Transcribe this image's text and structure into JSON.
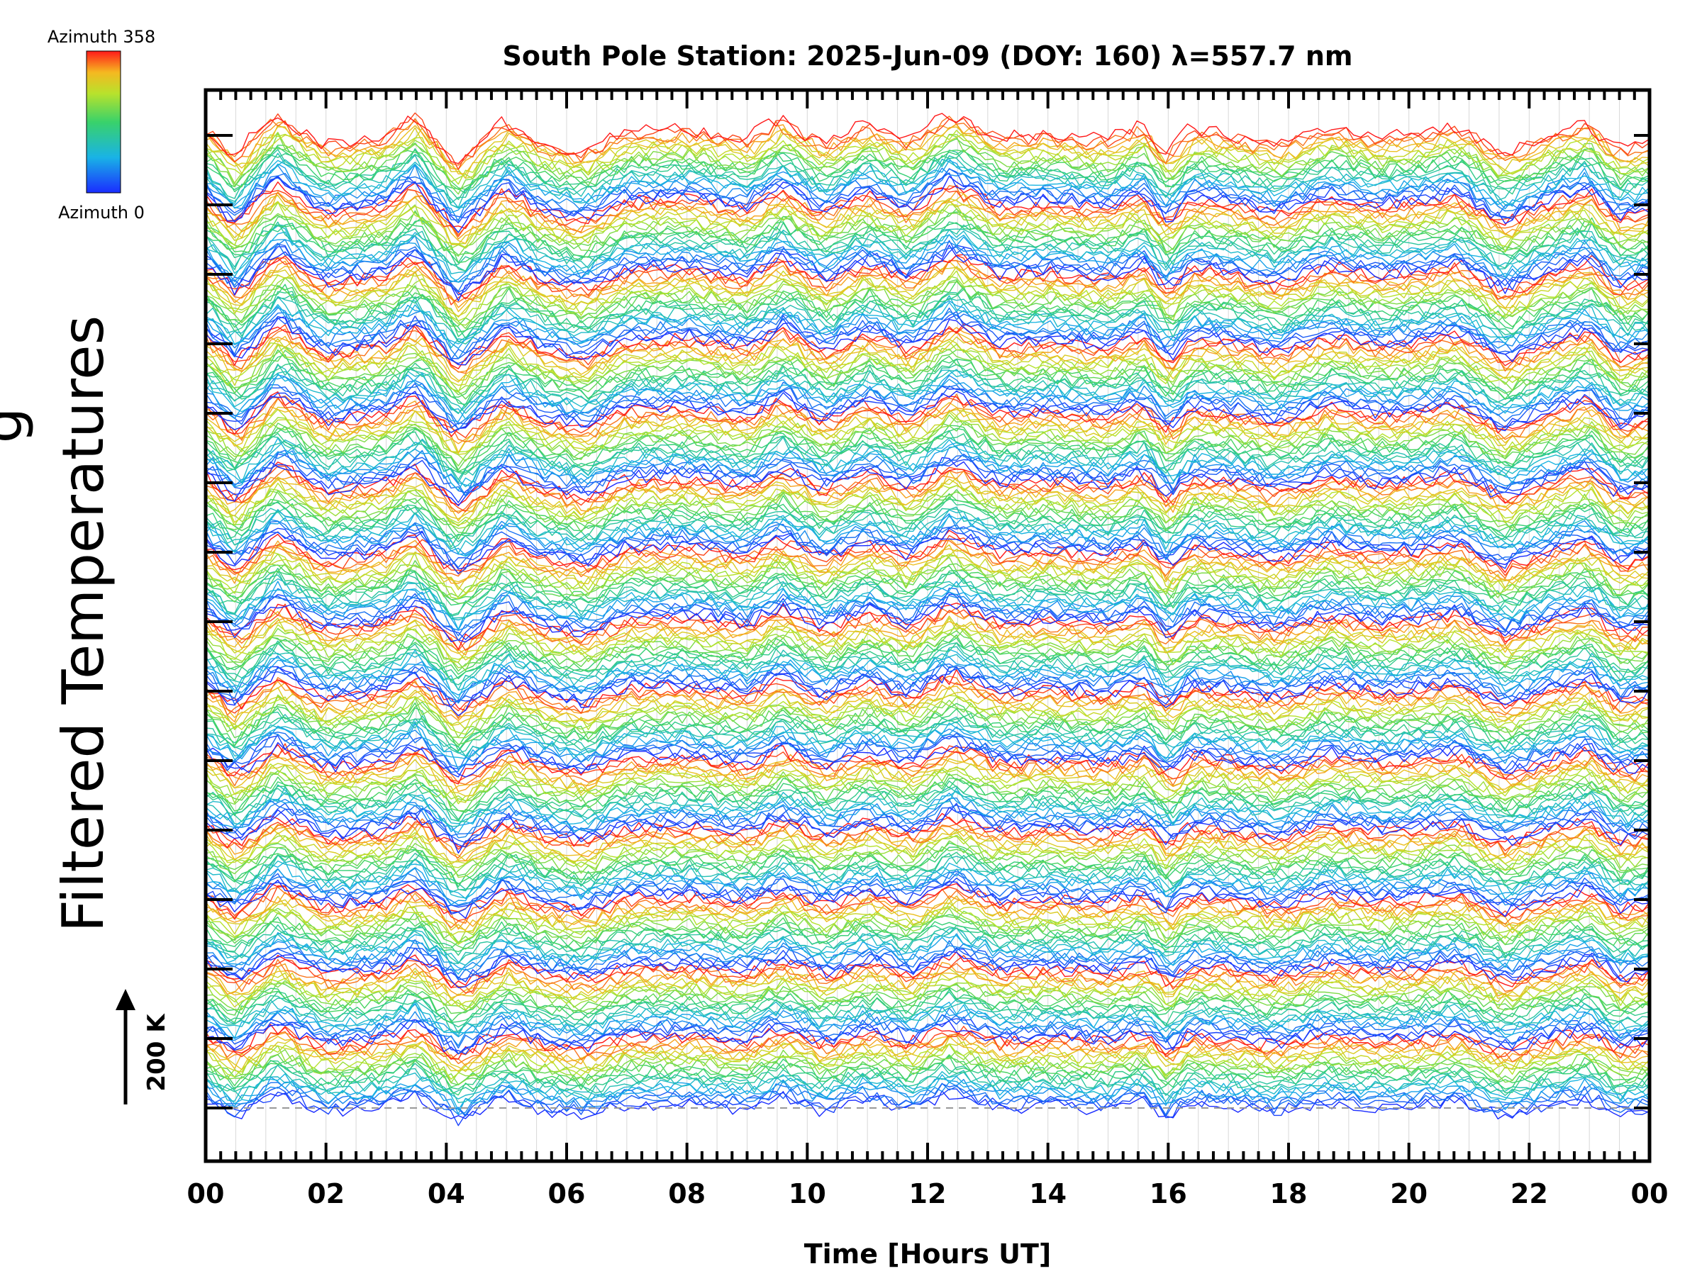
{
  "chart_data": {
    "type": "line",
    "title": "South Pole Station: 2025-Jun-09 (DOY: 160) λ=557.7 nm",
    "xlabel": "Time [Hours UT]",
    "ylabel": "Filtered Temperatures",
    "ylabel_partial": "g",
    "x_ticks": [
      "00",
      "02",
      "04",
      "06",
      "08",
      "10",
      "12",
      "14",
      "16",
      "18",
      "20",
      "22",
      "00"
    ],
    "xlim": [
      0,
      24
    ],
    "colorbar": {
      "top_label": "Azimuth 358",
      "bottom_label": "Azimuth 0",
      "min": 0,
      "max": 358
    },
    "scale_bar": {
      "label": "200 K",
      "value": 200,
      "unit": "K"
    },
    "stack": {
      "rings": 14,
      "azimuths_per_ring": 24,
      "baseline_dashed": true
    },
    "profile": {
      "description": "Approximate shared temperature variation pattern (K, relative) over hours UT",
      "hours": [
        0,
        0.5,
        1.2,
        2.0,
        3.0,
        3.5,
        4.2,
        5.0,
        5.6,
        6.3,
        7.0,
        8.0,
        9.0,
        9.6,
        10.3,
        11.0,
        11.7,
        12.4,
        13.2,
        14.0,
        15.0,
        15.6,
        16.0,
        16.4,
        17.0,
        17.8,
        18.7,
        19.5,
        20.2,
        20.8,
        21.6,
        22.3,
        23.0,
        23.5,
        24.0
      ],
      "values": [
        30,
        -45,
        60,
        -20,
        5,
        55,
        -60,
        40,
        -10,
        -35,
        15,
        20,
        -5,
        45,
        -15,
        35,
        -10,
        60,
        0,
        10,
        -5,
        30,
        -40,
        20,
        10,
        -20,
        25,
        0,
        10,
        30,
        -40,
        5,
        40,
        -30,
        -10
      ]
    }
  }
}
